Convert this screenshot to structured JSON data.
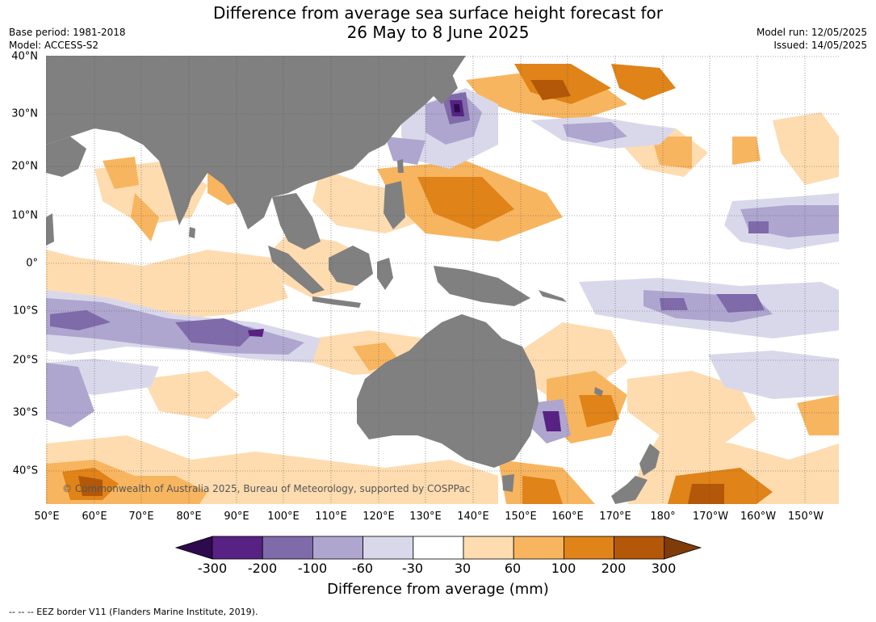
{
  "title": {
    "line1": "Difference from average sea surface height forecast for",
    "line2": "26 May to 8 June 2025"
  },
  "meta": {
    "base_period": "Base period: 1981-2018",
    "model": "Model: ACCESS-S2",
    "model_run": "Model run: 12/05/2025",
    "issued": "Issued: 14/05/2025"
  },
  "map": {
    "copyright": "© Commonwealth of Australia 2025, Bureau of Meteorology, supported by COSPPac",
    "lat_labels": [
      "40°N",
      "30°N",
      "20°N",
      "10°N",
      "0°",
      "10°S",
      "20°S",
      "30°S",
      "40°S"
    ],
    "lon_labels": [
      "50°E",
      "60°E",
      "70°E",
      "80°E",
      "90°E",
      "100°E",
      "110°E",
      "120°E",
      "130°E",
      "140°E",
      "150°E",
      "160°E",
      "170°E",
      "180°",
      "170°W",
      "160°W",
      "150°W"
    ],
    "land_color": "#808080",
    "ocean_color": "#ffffff"
  },
  "colorbar": {
    "title": "Difference from average (mm)",
    "tick_labels": [
      "-300",
      "-200",
      "-100",
      "-60",
      "-30",
      "30",
      "60",
      "100",
      "200",
      "300"
    ],
    "colors": [
      "#2d0a4e",
      "#572283",
      "#7f6aaa",
      "#aea6cf",
      "#d9d8eb",
      "#ffffff",
      "#fedcb0",
      "#f8b55f",
      "#e08318",
      "#b35808",
      "#7f3b08"
    ]
  },
  "footnote": "--  --  -- EEZ border V11 (Flanders Marine Institute, 2019)."
}
